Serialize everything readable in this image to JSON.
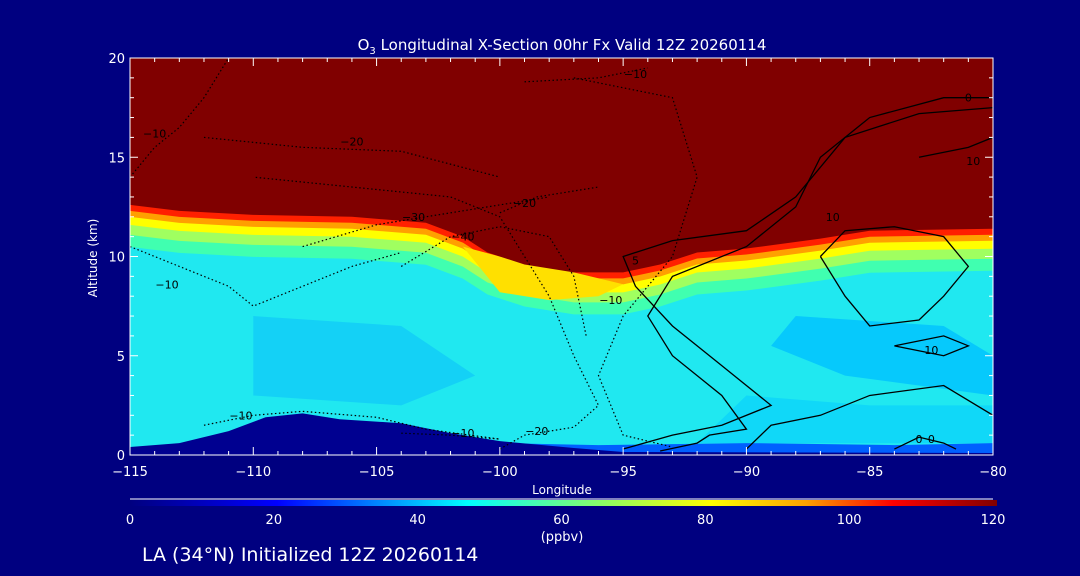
{
  "chart_data": {
    "type": "heatmap",
    "title": "O",
    "title_subscript": "3",
    "title_rest": " Longitudinal X-Section 00hr  Fx Valid 12Z 20260114",
    "xlabel": "Longitude",
    "ylabel": "Altitude (km)",
    "xlim": [
      -115,
      -80
    ],
    "ylim": [
      0,
      20
    ],
    "xticks": [
      -115,
      -110,
      -105,
      -100,
      -95,
      -90,
      -85,
      -80
    ],
    "xtick_labels": [
      "−115",
      "−110",
      "−105",
      "−100",
      "−95",
      "−90",
      "−85",
      "−80"
    ],
    "yticks": [
      0,
      5,
      10,
      15,
      20
    ],
    "ytick_labels": [
      "0",
      "5",
      "10",
      "15",
      "20"
    ],
    "colorbar": {
      "range": [
        0,
        120
      ],
      "ticks": [
        "0",
        "20",
        "40",
        "60",
        "80",
        "100",
        "120"
      ],
      "units": "(ppbv)"
    },
    "field": {
      "stratosphere_value": 120,
      "troposphere_value": 47,
      "surface_value": 25,
      "tropopause": [
        [
          -115,
          12.6
        ],
        [
          -113,
          12.3
        ],
        [
          -110,
          12.1
        ],
        [
          -106,
          12.0
        ],
        [
          -103,
          11.7
        ],
        [
          -101.5,
          11.0
        ],
        [
          -100.5,
          10.2
        ],
        [
          -99,
          9.6
        ],
        [
          -97,
          9.2
        ],
        [
          -95,
          9.2
        ],
        [
          -93.5,
          9.6
        ],
        [
          -92,
          10.2
        ],
        [
          -90,
          10.4
        ],
        [
          -87,
          10.9
        ],
        [
          -85,
          11.3
        ],
        [
          -80,
          11.4
        ]
      ],
      "terrain": [
        [
          -115,
          0.4
        ],
        [
          -113,
          0.6
        ],
        [
          -111,
          1.2
        ],
        [
          -109.5,
          1.9
        ],
        [
          -108,
          2.1
        ],
        [
          -106.5,
          1.8
        ],
        [
          -104,
          1.6
        ],
        [
          -102,
          1.1
        ],
        [
          -100,
          0.7
        ],
        [
          -97,
          0.35
        ],
        [
          -95,
          0.15
        ],
        [
          -80,
          0.1
        ]
      ]
    },
    "contours": [
      {
        "value": "-10",
        "dash": true,
        "points": [
          [
            -115,
            10.5
          ],
          [
            -113,
            9.5
          ],
          [
            -111,
            8.5
          ],
          [
            -110,
            7.5
          ],
          [
            -108,
            8.5
          ],
          [
            -106,
            9.5
          ],
          [
            -104,
            10.2
          ]
        ],
        "label_at": [
          -113.5,
          8.6
        ]
      },
      {
        "value": "-10",
        "dash": true,
        "points": [
          [
            -112,
            1.5
          ],
          [
            -110,
            2.0
          ],
          [
            -108,
            2.2
          ],
          [
            -105,
            1.9
          ],
          [
            -103,
            1.3
          ],
          [
            -100,
            0.8
          ]
        ],
        "label_at": [
          -110.5,
          2.0
        ]
      },
      {
        "value": "-10",
        "dash": true,
        "points": [
          [
            -104,
            1.1
          ],
          [
            -102,
            1.0
          ],
          [
            -100,
            0.8
          ]
        ],
        "label_at": [
          -101.5,
          1.1
        ]
      },
      {
        "value": "-20",
        "dash": true,
        "points": [
          [
            -100,
            0.3
          ],
          [
            -99,
            1.0
          ],
          [
            -97,
            1.4
          ],
          [
            -96,
            2.5
          ],
          [
            -97,
            5.0
          ],
          [
            -98,
            8.0
          ],
          [
            -99,
            10.0
          ],
          [
            -100,
            12.0
          ],
          [
            -102,
            13.0
          ],
          [
            -106,
            13.5
          ],
          [
            -110,
            14.0
          ]
        ],
        "label_at": [
          -98.5,
          1.2
        ]
      },
      {
        "value": "-20",
        "dash": true,
        "points": [
          [
            -112,
            16
          ],
          [
            -108,
            15.5
          ],
          [
            -104,
            15.3
          ],
          [
            -100,
            14.0
          ]
        ],
        "label_at": [
          -106,
          15.8
        ]
      },
      {
        "value": "-30",
        "dash": true,
        "points": [
          [
            -108,
            10.5
          ],
          [
            -105,
            11.6
          ],
          [
            -102,
            12.2
          ],
          [
            -100,
            12.6
          ],
          [
            -98,
            13.0
          ]
        ],
        "label_at": [
          -103.5,
          12.0
        ]
      },
      {
        "value": "-40",
        "dash": true,
        "points": [
          [
            -104,
            9.5
          ],
          [
            -102,
            11.0
          ],
          [
            -100,
            11.5
          ],
          [
            -98,
            11.0
          ],
          [
            -97,
            9.0
          ],
          [
            -96.5,
            6.0
          ]
        ],
        "label_at": [
          -101.5,
          11.0
        ]
      },
      {
        "value": "-20",
        "dash": true,
        "points": [
          [
            -100,
            12.2
          ],
          [
            -98.5,
            13
          ],
          [
            -96,
            13.5
          ]
        ],
        "label_at": [
          -99,
          12.7
        ]
      },
      {
        "value": "-10",
        "dash": true,
        "points": [
          [
            -97,
            19.0
          ],
          [
            -95,
            18.5
          ],
          [
            -93,
            18.0
          ],
          [
            -92,
            14.0
          ],
          [
            -93,
            10.0
          ],
          [
            -95,
            7.0
          ],
          [
            -96,
            4.0
          ],
          [
            -95,
            1.0
          ],
          [
            -93,
            0.4
          ]
        ],
        "label_at": [
          -95.5,
          7.8
        ]
      },
      {
        "value": "-10",
        "dash": true,
        "points": [
          [
            -99,
            18.8
          ],
          [
            -96,
            19.0
          ],
          [
            -94,
            19.5
          ]
        ],
        "label_at": [
          -94.5,
          19.2
        ]
      },
      {
        "value": "-10",
        "dash": true,
        "points": [
          [
            -115,
            14.0
          ],
          [
            -114,
            15.5
          ],
          [
            -113,
            16.5
          ],
          [
            -112,
            18
          ],
          [
            -111,
            20
          ]
        ],
        "label_at": [
          -114,
          16.2
        ]
      },
      {
        "value": "0",
        "dash": false,
        "points": [
          [
            -93.5,
            0.2
          ],
          [
            -92,
            0.6
          ],
          [
            -91.5,
            1.0
          ],
          [
            -90,
            1.3
          ],
          [
            -91,
            3.0
          ],
          [
            -93,
            5.0
          ],
          [
            -94,
            7.0
          ],
          [
            -93,
            9.0
          ],
          [
            -90,
            10.5
          ],
          [
            -88,
            12.5
          ],
          [
            -87,
            15.0
          ],
          [
            -85,
            17.0
          ],
          [
            -82,
            18.0
          ],
          [
            -80,
            18.0
          ]
        ],
        "label_at": [
          -81,
          18.0
        ]
      },
      {
        "value": "5",
        "dash": false,
        "points": [
          [
            -95,
            0.3
          ],
          [
            -93,
            1.0
          ],
          [
            -91,
            1.5
          ],
          [
            -89,
            2.5
          ],
          [
            -91,
            4.5
          ],
          [
            -93,
            6.5
          ],
          [
            -94.5,
            8.5
          ],
          [
            -95,
            10.0
          ],
          [
            -93,
            10.8
          ],
          [
            -90,
            11.3
          ],
          [
            -88,
            13.0
          ],
          [
            -86,
            16.0
          ],
          [
            -83,
            17.2
          ],
          [
            -80,
            17.5
          ]
        ],
        "label_at": [
          -94.5,
          9.8
        ]
      },
      {
        "value": "10",
        "dash": false,
        "points": [
          [
            -87,
            10.0
          ],
          [
            -86,
            8.0
          ],
          [
            -85,
            6.5
          ],
          [
            -83,
            6.8
          ],
          [
            -82,
            8.0
          ],
          [
            -81,
            9.5
          ],
          [
            -82,
            11.0
          ],
          [
            -84,
            11.5
          ],
          [
            -86,
            11.3
          ],
          [
            -87,
            10.0
          ]
        ],
        "label_at": [
          -86.5,
          12.0
        ]
      },
      {
        "value": "0",
        "dash": false,
        "points": [
          [
            -90,
            0.3
          ],
          [
            -89,
            1.5
          ],
          [
            -87,
            2.0
          ],
          [
            -85,
            3.0
          ],
          [
            -82,
            3.5
          ],
          [
            -80,
            2.0
          ]
        ],
        "label_at": [
          -82.5,
          0.8
        ]
      },
      {
        "value": "0",
        "dash": false,
        "points": [
          [
            -84,
            0.3
          ],
          [
            -83,
            0.9
          ],
          [
            -82,
            0.6
          ],
          [
            -81.5,
            0.3
          ]
        ],
        "label_at": [
          -83,
          0.8
        ]
      },
      {
        "value": "10",
        "dash": false,
        "points": [
          [
            -84,
            5.5
          ],
          [
            -82,
            5.0
          ],
          [
            -81,
            5.5
          ],
          [
            -82,
            6.0
          ],
          [
            -84,
            5.5
          ]
        ],
        "label_at": [
          -82.5,
          5.3
        ]
      },
      {
        "value": "10",
        "dash": false,
        "points": [
          [
            -83,
            15
          ],
          [
            -81,
            15.5
          ],
          [
            -80,
            16
          ]
        ],
        "label_at": [
          -80.8,
          14.8
        ]
      }
    ]
  },
  "footer": {
    "caption": "LA (34°N) Initialized 12Z 20260114"
  }
}
